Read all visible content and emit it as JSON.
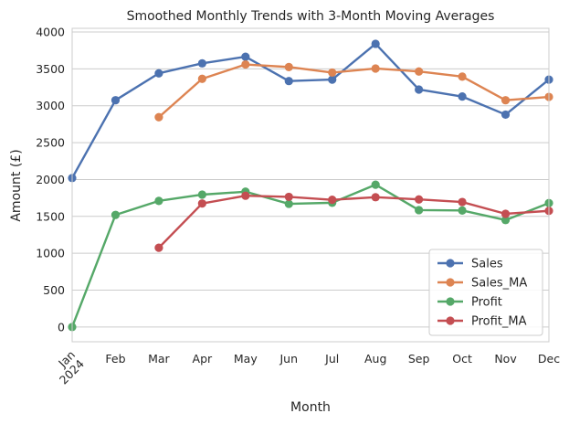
{
  "chart_data": {
    "type": "line",
    "title": "Smoothed Monthly Trends with 3-Month Moving Averages",
    "xlabel": "Month",
    "ylabel": "Amount (£)",
    "categories": [
      "Jan\n2024",
      "Feb",
      "Mar",
      "Apr",
      "May",
      "Jun",
      "Jul",
      "Aug",
      "Sep",
      "Oct",
      "Nov",
      "Dec"
    ],
    "ylim": [
      -200,
      4050
    ],
    "yticks": [
      0,
      500,
      1000,
      1500,
      2000,
      2500,
      3000,
      3500,
      4000
    ],
    "grid": true,
    "legend_position": "lower-right",
    "series": [
      {
        "name": "Sales",
        "color": "#4c72b0",
        "values": [
          2020,
          3075,
          3440,
          3575,
          3665,
          3335,
          3355,
          3840,
          3220,
          3125,
          2880,
          3355
        ]
      },
      {
        "name": "Sales_MA",
        "color": "#dd8452",
        "values": [
          null,
          null,
          2845,
          3365,
          3560,
          3525,
          3450,
          3505,
          3465,
          3395,
          3075,
          3120
        ]
      },
      {
        "name": "Profit",
        "color": "#55a868",
        "values": [
          0,
          1520,
          1710,
          1795,
          1835,
          1670,
          1685,
          1930,
          1585,
          1580,
          1450,
          1680
        ]
      },
      {
        "name": "Profit_MA",
        "color": "#c44e52",
        "values": [
          null,
          null,
          1075,
          1675,
          1780,
          1765,
          1725,
          1760,
          1730,
          1695,
          1535,
          1575
        ]
      }
    ]
  }
}
